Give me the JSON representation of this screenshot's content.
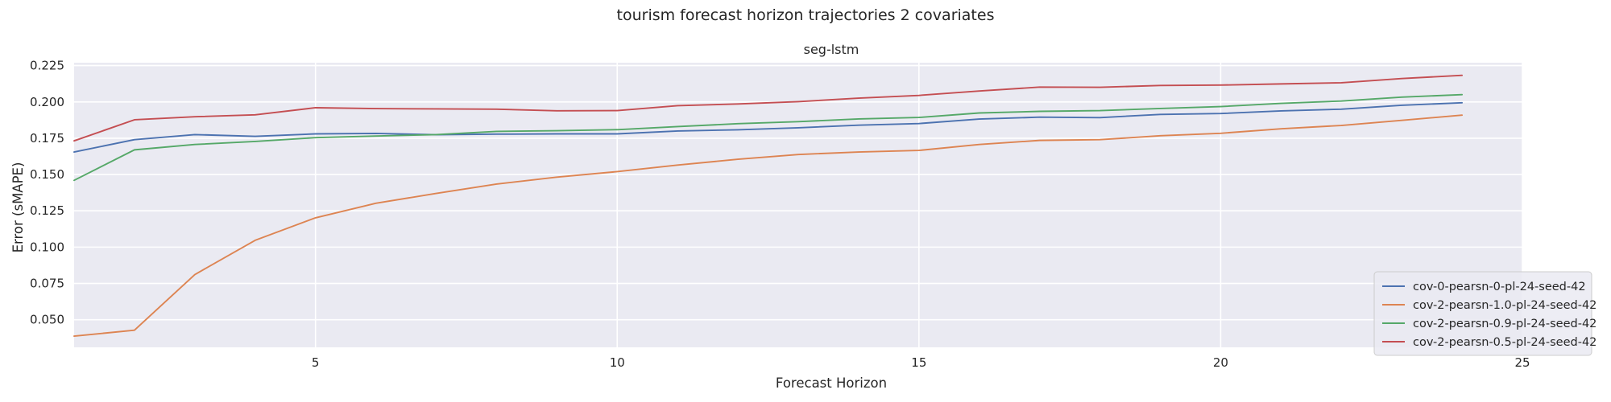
{
  "chart_data": {
    "type": "line",
    "title": "tourism forecast horizon trajectories 2 covariates",
    "subtitle": "seg-lstm",
    "xlabel": "Forecast Horizon",
    "ylabel": "Error (sMAPE)",
    "xlim": [
      1,
      25
    ],
    "ylim": [
      0.031,
      0.227
    ],
    "xticks": [
      5,
      10,
      15,
      20,
      25
    ],
    "yticks": [
      0.05,
      0.075,
      0.1,
      0.125,
      0.15,
      0.175,
      0.2,
      0.225
    ],
    "ytick_labels": [
      "0.050",
      "0.075",
      "0.100",
      "0.125",
      "0.150",
      "0.175",
      "0.200",
      "0.225"
    ],
    "grid": true,
    "legend_position": "bottom-right",
    "x": [
      1,
      2,
      3,
      4,
      5,
      6,
      7,
      8,
      9,
      10,
      11,
      12,
      13,
      14,
      15,
      16,
      17,
      18,
      19,
      20,
      21,
      22,
      23,
      24
    ],
    "series": [
      {
        "name": "cov-0-pearsn-0-pl-24-seed-42",
        "color": "#4c72b0",
        "values": [
          0.1655,
          0.174,
          0.1775,
          0.1763,
          0.178,
          0.1783,
          0.1774,
          0.1778,
          0.178,
          0.178,
          0.18,
          0.1808,
          0.1822,
          0.184,
          0.1851,
          0.1882,
          0.1895,
          0.1892,
          0.1914,
          0.192,
          0.1938,
          0.195,
          0.1977,
          0.1994
        ]
      },
      {
        "name": "cov-2-pearsn-1.0-pl-24-seed-42",
        "color": "#dd8452",
        "values": [
          0.0387,
          0.0428,
          0.0811,
          0.1047,
          0.1202,
          0.1302,
          0.137,
          0.1434,
          0.1482,
          0.152,
          0.1565,
          0.1605,
          0.1638,
          0.1655,
          0.1666,
          0.1707,
          0.1735,
          0.174,
          0.1767,
          0.1784,
          0.1815,
          0.1838,
          0.1873,
          0.1909
        ]
      },
      {
        "name": "cov-2-pearsn-0.9-pl-24-seed-42",
        "color": "#55a868",
        "values": [
          0.146,
          0.167,
          0.1707,
          0.1728,
          0.1754,
          0.1765,
          0.1775,
          0.1797,
          0.1802,
          0.1809,
          0.183,
          0.185,
          0.1864,
          0.1883,
          0.1893,
          0.1924,
          0.1935,
          0.194,
          0.1955,
          0.1968,
          0.199,
          0.2006,
          0.2033,
          0.205
        ]
      },
      {
        "name": "cov-2-pearsn-0.5-pl-24-seed-42",
        "color": "#c44e52",
        "values": [
          0.1732,
          0.1877,
          0.1898,
          0.1911,
          0.196,
          0.1954,
          0.1952,
          0.195,
          0.1939,
          0.194,
          0.1974,
          0.1986,
          0.2002,
          0.2026,
          0.2045,
          0.2075,
          0.2102,
          0.2101,
          0.2113,
          0.2116,
          0.2124,
          0.2132,
          0.2161,
          0.2183
        ]
      }
    ]
  }
}
